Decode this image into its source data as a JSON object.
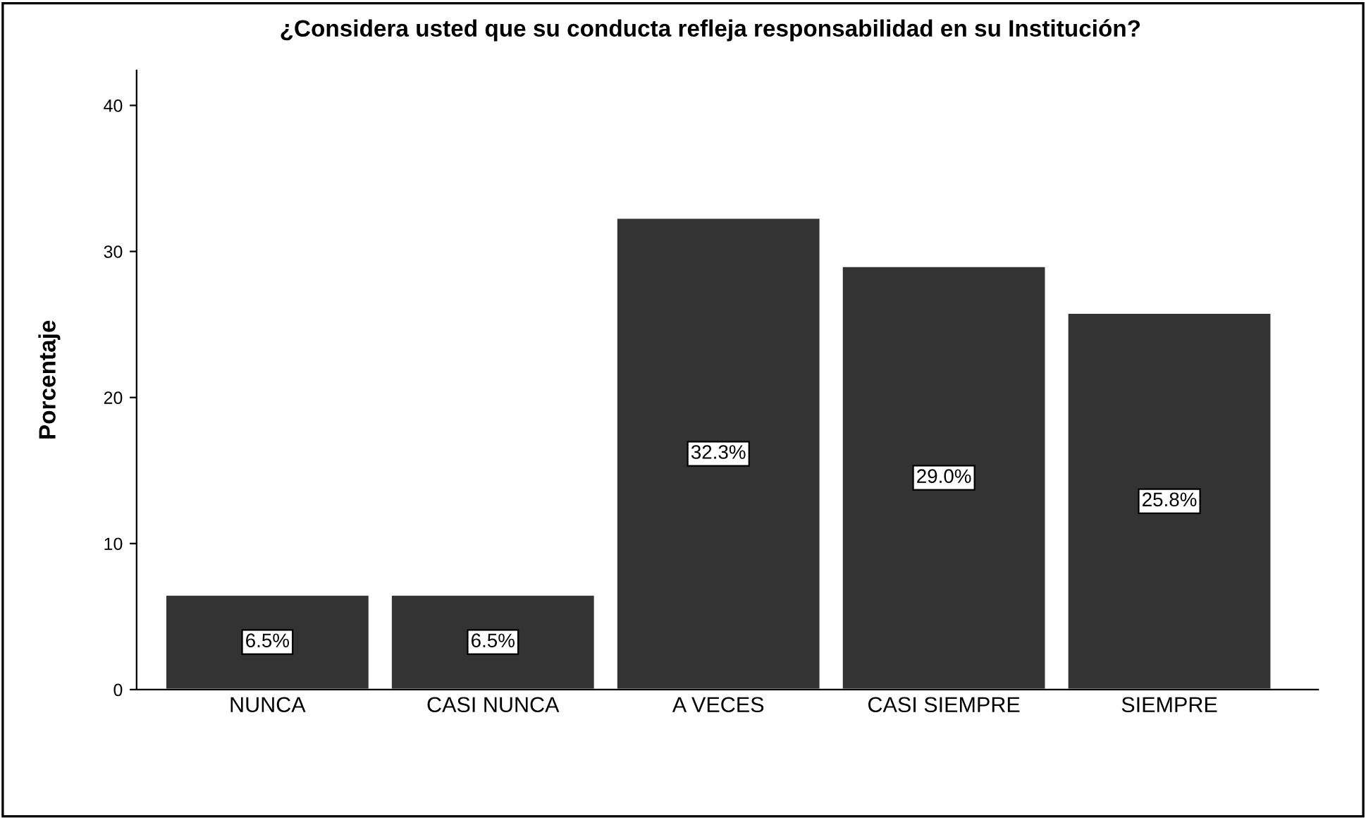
{
  "chart_data": {
    "type": "bar",
    "title": "¿Considera usted que su conducta refleja responsabilidad en su Institución?",
    "ylabel": "Porcentaje",
    "categories": [
      "NUNCA",
      "CASI NUNCA",
      "A VECES",
      "CASI SIEMPRE",
      "SIEMPRE"
    ],
    "values": [
      6.5,
      6.5,
      32.3,
      29.0,
      25.8
    ],
    "value_labels": [
      "6.5%",
      "6.5%",
      "32.3%",
      "29.0%",
      "25.8%"
    ],
    "color": "#333333",
    "ylim": [
      0,
      42.4
    ],
    "yticks": [
      0,
      10,
      20,
      30,
      40
    ],
    "grid": false,
    "legend": false
  }
}
